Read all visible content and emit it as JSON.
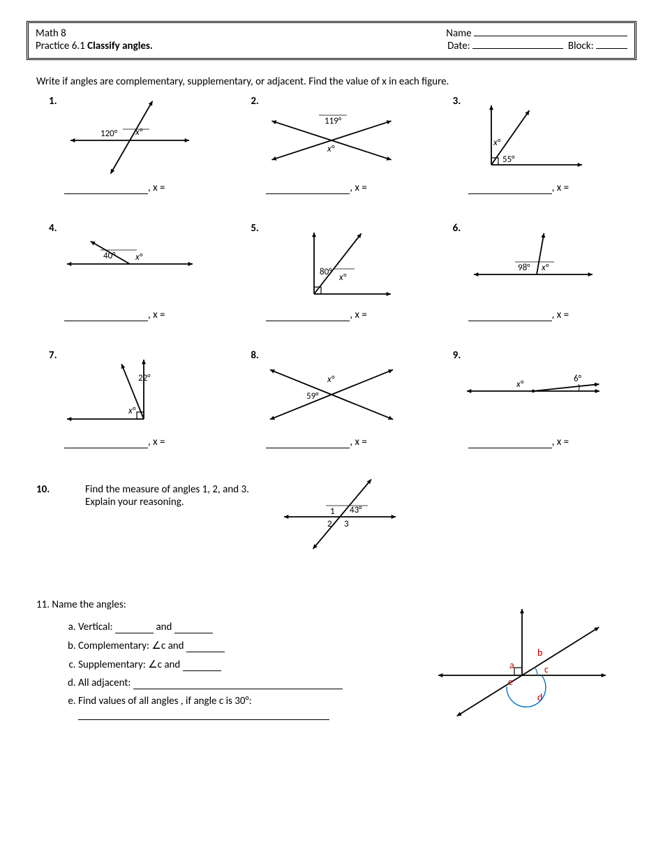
{
  "header": {
    "course": "Math 8",
    "practice_label": "Practice 6.1 ",
    "practice_title": "Classify angles.",
    "name_label": "Name",
    "date_label": "Date:",
    "block_label": "Block:",
    "name_blank_width": 220,
    "date_blank_width": 130,
    "block_blank_width": 45
  },
  "instructions": "Write if angles are complementary, supplementary, or adjacent. Find the value of x in each figure.",
  "answer_suffix": ", x =",
  "problems": [
    {
      "num": "1.",
      "type": "intersecting-lines",
      "angle_label": "120°",
      "var_label": "x°",
      "line1_angle_deg": 0,
      "line2_angle_deg": 60,
      "label_pos": "upper-left",
      "var_pos": "upper-right"
    },
    {
      "num": "2.",
      "type": "crossing-x",
      "angle_label": "119°",
      "var_label": "x°",
      "line1_angle_deg": 18,
      "line2_angle_deg": 162
    },
    {
      "num": "3.",
      "type": "right-angle-split",
      "angle_label": "55°",
      "var_label": "x°",
      "ray_angle_deg": 55,
      "square": true
    },
    {
      "num": "4.",
      "type": "flat-split",
      "angle_label": "40°",
      "var_label": "x°",
      "ray_angle_deg": 150
    },
    {
      "num": "5.",
      "type": "right-angle-two-rays",
      "angle_label": "80°",
      "var_label": "x°",
      "ray1_deg": 100,
      "ray2_deg": 52,
      "square": true
    },
    {
      "num": "6.",
      "type": "flat-split-up",
      "angle_label": "98°",
      "var_label": "x°",
      "ray_angle_deg": 80
    },
    {
      "num": "7.",
      "type": "perp-split",
      "angle_label": "22°",
      "var_label": "x°",
      "ray_angle_deg": 112,
      "square": true
    },
    {
      "num": "8.",
      "type": "crossing-x2",
      "angle_label": "59°",
      "var_label": "x°",
      "line1_angle_deg": 22,
      "line2_angle_deg": 158
    },
    {
      "num": "9.",
      "type": "near-flat",
      "angle_label": "6°",
      "var_label": "x°",
      "ray_angle_deg": 6
    }
  ],
  "q10": {
    "num": "10.",
    "text1": "Find the measure of angles 1, 2, and 3.",
    "text2": "Explain your reasoning.",
    "given_label": "43°",
    "labels": [
      "1",
      "2",
      "3"
    ]
  },
  "q11": {
    "title": "11.  Name the angles:",
    "items": {
      "a": {
        "prefix": "Vertical: ",
        "mid": " and "
      },
      "b": {
        "prefix": "Complementary:   ∠c  and "
      },
      "c": {
        "prefix": "Supplementary: ∠c  and "
      },
      "d": {
        "prefix": "All adjacent: "
      },
      "e": {
        "prefix": "Find values of all angles , if  angle c is 30°:  "
      }
    },
    "diagram": {
      "labels": [
        "a",
        "b",
        "c",
        "d",
        "e"
      ],
      "label_color": "#c00000",
      "arc_color": "#0070c0"
    }
  },
  "style": {
    "stroke": "#000000",
    "stroke_width": 1.8,
    "arrow_size": 7
  }
}
